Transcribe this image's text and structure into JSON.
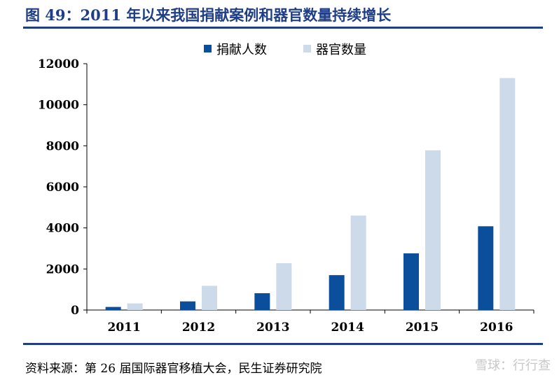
{
  "page": {
    "title": "图 49：2011 年以来我国捐献案例和器官数量持续增长",
    "source": "资料来源：第 26 届国际器官移植大会，民生证券研究院",
    "watermark": "雪球：行行查"
  },
  "chart_data": {
    "type": "bar",
    "title": "",
    "xlabel": "",
    "ylabel": "",
    "categories": [
      "2011",
      "2012",
      "2013",
      "2014",
      "2015",
      "2016"
    ],
    "series": [
      {
        "name": "捐献人数",
        "values": [
          150,
          420,
          820,
          1700,
          2760,
          4080
        ],
        "color": "#0b4f9c"
      },
      {
        "name": "器官数量",
        "values": [
          320,
          1180,
          2280,
          4600,
          7780,
          11300
        ],
        "color": "#cddaea"
      }
    ],
    "ylim": [
      0,
      12000
    ],
    "yticks": [
      0,
      2000,
      4000,
      6000,
      8000,
      10000,
      12000
    ],
    "grid": false,
    "legend": "top-center"
  }
}
